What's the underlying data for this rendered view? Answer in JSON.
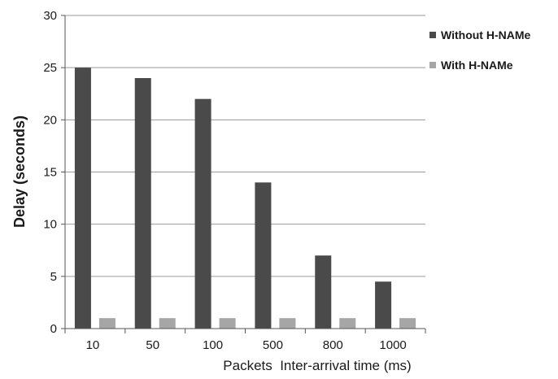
{
  "chart_data": {
    "type": "bar",
    "title": "",
    "xlabel": "Packets  Inter-arrival time (ms)",
    "ylabel": "Delay (seconds)",
    "categories": [
      "10",
      "50",
      "100",
      "500",
      "800",
      "1000"
    ],
    "series": [
      {
        "name": "Without H-NAMe",
        "values": [
          25,
          24,
          22,
          14,
          7,
          4.5
        ],
        "color": "#4a4a4a"
      },
      {
        "name": "With H-NAMe",
        "values": [
          1,
          1,
          1,
          1,
          1,
          1
        ],
        "color": "#a6a6a6"
      }
    ],
    "ylim": [
      0,
      30
    ],
    "yticks": [
      0,
      5,
      10,
      15,
      20,
      25,
      30
    ],
    "grid": true,
    "legend_position": "right"
  }
}
